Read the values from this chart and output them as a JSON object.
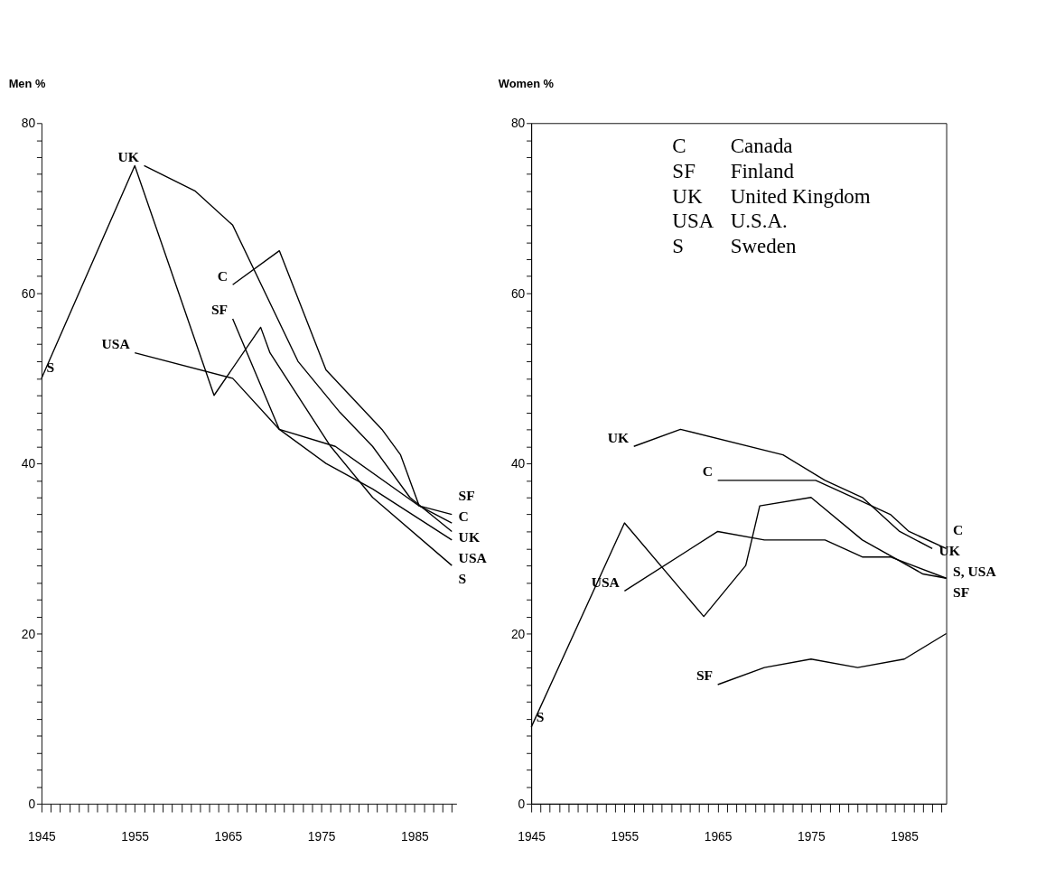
{
  "chart_data": [
    {
      "type": "line",
      "ylabel": "Men %",
      "xlim": [
        1945,
        1989.5
      ],
      "ylim": [
        0,
        80
      ],
      "xticks": [
        1945,
        {
          "value": 1946,
          "label": null
        },
        {
          "value": 1947,
          "label": null
        },
        {
          "value": 1948,
          "label": null
        },
        {
          "value": 1949,
          "label": null
        },
        {
          "value": 1950,
          "label": null
        },
        {
          "value": 1951,
          "label": null
        },
        {
          "value": 1952,
          "label": null
        },
        {
          "value": 1953,
          "label": null
        },
        {
          "value": 1954,
          "label": null
        },
        1955,
        {
          "value": 1956,
          "label": null
        },
        {
          "value": 1957,
          "label": null
        },
        {
          "value": 1958,
          "label": null
        },
        {
          "value": 1959,
          "label": null
        },
        {
          "value": 1960,
          "label": null
        },
        {
          "value": 1961,
          "label": null
        },
        {
          "value": 1962,
          "label": null
        },
        {
          "value": 1963,
          "label": null
        },
        {
          "value": 1964,
          "label": null
        },
        1965,
        {
          "value": 1966,
          "label": null
        },
        {
          "value": 1967,
          "label": null
        },
        {
          "value": 1968,
          "label": null
        },
        {
          "value": 1969,
          "label": null
        },
        {
          "value": 1970,
          "label": null
        },
        {
          "value": 1971,
          "label": null
        },
        {
          "value": 1972,
          "label": null
        },
        {
          "value": 1973,
          "label": null
        },
        {
          "value": 1974,
          "label": null
        },
        1975,
        {
          "value": 1976,
          "label": null
        },
        {
          "value": 1977,
          "label": null
        },
        {
          "value": 1978,
          "label": null
        },
        {
          "value": 1979,
          "label": null
        },
        {
          "value": 1980,
          "label": null
        },
        {
          "value": 1981,
          "label": null
        },
        {
          "value": 1982,
          "label": null
        },
        {
          "value": 1983,
          "label": null
        },
        {
          "value": 1984,
          "label": null
        },
        1985,
        {
          "value": 1986,
          "label": null
        },
        {
          "value": 1987,
          "label": null
        },
        {
          "value": 1988,
          "label": null
        },
        {
          "value": 1989,
          "label": null
        }
      ],
      "yticks": [
        0,
        {
          "value": 2,
          "label": null
        },
        {
          "value": 4,
          "label": null
        },
        {
          "value": 6,
          "label": null
        },
        {
          "value": 8,
          "label": null
        },
        {
          "value": 10,
          "label": null
        },
        {
          "value": 12,
          "label": null
        },
        {
          "value": 14,
          "label": null
        },
        {
          "value": 16,
          "label": null
        },
        {
          "value": 18,
          "label": null
        },
        20,
        {
          "value": 22,
          "label": null
        },
        {
          "value": 24,
          "label": null
        },
        {
          "value": 26,
          "label": null
        },
        {
          "value": 28,
          "label": null
        },
        {
          "value": 30,
          "label": null
        },
        {
          "value": 32,
          "label": null
        },
        {
          "value": 34,
          "label": null
        },
        {
          "value": 36,
          "label": null
        },
        {
          "value": 38,
          "label": null
        },
        40,
        {
          "value": 42,
          "label": null
        },
        {
          "value": 44,
          "label": null
        },
        {
          "value": 46,
          "label": null
        },
        {
          "value": 48,
          "label": null
        },
        {
          "value": 50,
          "label": null
        },
        {
          "value": 52,
          "label": null
        },
        {
          "value": 54,
          "label": null
        },
        {
          "value": 56,
          "label": null
        },
        {
          "value": 58,
          "label": null
        },
        60,
        {
          "value": 62,
          "label": null
        },
        {
          "value": 64,
          "label": null
        },
        {
          "value": 66,
          "label": null
        },
        {
          "value": 68,
          "label": null
        },
        {
          "value": 70,
          "label": null
        },
        {
          "value": 72,
          "label": null
        },
        {
          "value": 74,
          "label": null
        },
        {
          "value": 76,
          "label": null
        },
        {
          "value": 78,
          "label": null
        },
        80
      ],
      "series": [
        {
          "color": "#000000",
          "x": [
            1945,
            1955,
            1963.5,
            1968.5,
            1969.5,
            1976,
            1980.5,
            1989
          ],
          "values": [
            50,
            75,
            48,
            56,
            53,
            42,
            36,
            28
          ]
        },
        {
          "color": "#000000",
          "x": [
            1956,
            1961.5,
            1965.5,
            1972.5,
            1977,
            1980.5,
            1984.5,
            1989
          ],
          "values": [
            75,
            72,
            68,
            52,
            46,
            42,
            36,
            32
          ]
        },
        {
          "color": "#000000",
          "x": [
            1965.5,
            1970.5,
            1975.5,
            1981.5,
            1983.5,
            1985.5,
            1989
          ],
          "values": [
            61,
            65,
            51,
            44,
            41,
            35,
            33
          ]
        },
        {
          "color": "#000000",
          "x": [
            1965.5,
            1970.5,
            1975.5,
            1980.5,
            1989
          ],
          "values": [
            57,
            44,
            40,
            37,
            31
          ]
        },
        {
          "color": "#000000",
          "x": [
            1955,
            1965.5,
            1970.5,
            1976.5,
            1985.5,
            1989
          ],
          "values": [
            53,
            50,
            44,
            42,
            35,
            34
          ]
        }
      ],
      "annotations": [
        {
          "text": "S",
          "x": 1945,
          "y": 50
        },
        {
          "text": "UK",
          "x": 1956,
          "y": 75
        },
        {
          "text": "USA",
          "x": 1955,
          "y": 53
        },
        {
          "text": "C",
          "x": 1965.5,
          "y": 61
        },
        {
          "text": "SF",
          "x": 1965.5,
          "y": 57
        },
        {
          "text": "SF",
          "x": 1989,
          "y": 31
        },
        {
          "text": "C",
          "x": 1989,
          "y": 33
        },
        {
          "text": "UK",
          "x": 1989,
          "y": 32
        },
        {
          "text": "USA",
          "x": 1989,
          "y": 34
        },
        {
          "text": "S",
          "x": 1989,
          "y": 28
        }
      ]
    },
    {
      "type": "line",
      "ylabel": "Women %",
      "xlim": [
        1945,
        1989.5
      ],
      "ylim": [
        0,
        80
      ],
      "xticks": [
        1945,
        {
          "value": 1946,
          "label": null
        },
        {
          "value": 1947,
          "label": null
        },
        {
          "value": 1948,
          "label": null
        },
        {
          "value": 1949,
          "label": null
        },
        {
          "value": 1950,
          "label": null
        },
        {
          "value": 1951,
          "label": null
        },
        {
          "value": 1952,
          "label": null
        },
        {
          "value": 1953,
          "label": null
        },
        {
          "value": 1954,
          "label": null
        },
        1955,
        {
          "value": 1956,
          "label": null
        },
        {
          "value": 1957,
          "label": null
        },
        {
          "value": 1958,
          "label": null
        },
        {
          "value": 1959,
          "label": null
        },
        {
          "value": 1960,
          "label": null
        },
        {
          "value": 1961,
          "label": null
        },
        {
          "value": 1962,
          "label": null
        },
        {
          "value": 1963,
          "label": null
        },
        {
          "value": 1964,
          "label": null
        },
        1965,
        {
          "value": 1966,
          "label": null
        },
        {
          "value": 1967,
          "label": null
        },
        {
          "value": 1968,
          "label": null
        },
        {
          "value": 1969,
          "label": null
        },
        {
          "value": 1970,
          "label": null
        },
        {
          "value": 1971,
          "label": null
        },
        {
          "value": 1972,
          "label": null
        },
        {
          "value": 1973,
          "label": null
        },
        {
          "value": 1974,
          "label": null
        },
        1975,
        {
          "value": 1976,
          "label": null
        },
        {
          "value": 1977,
          "label": null
        },
        {
          "value": 1978,
          "label": null
        },
        {
          "value": 1979,
          "label": null
        },
        {
          "value": 1980,
          "label": null
        },
        {
          "value": 1981,
          "label": null
        },
        {
          "value": 1982,
          "label": null
        },
        {
          "value": 1983,
          "label": null
        },
        {
          "value": 1984,
          "label": null
        },
        1985,
        {
          "value": 1986,
          "label": null
        },
        {
          "value": 1987,
          "label": null
        },
        {
          "value": 1988,
          "label": null
        },
        {
          "value": 1989,
          "label": null
        }
      ],
      "yticks": [
        0,
        {
          "value": 2,
          "label": null
        },
        {
          "value": 4,
          "label": null
        },
        {
          "value": 6,
          "label": null
        },
        {
          "value": 8,
          "label": null
        },
        {
          "value": 10,
          "label": null
        },
        {
          "value": 12,
          "label": null
        },
        {
          "value": 14,
          "label": null
        },
        {
          "value": 16,
          "label": null
        },
        {
          "value": 18,
          "label": null
        },
        20,
        {
          "value": 22,
          "label": null
        },
        {
          "value": 24,
          "label": null
        },
        {
          "value": 26,
          "label": null
        },
        {
          "value": 28,
          "label": null
        },
        {
          "value": 30,
          "label": null
        },
        {
          "value": 32,
          "label": null
        },
        {
          "value": 34,
          "label": null
        },
        {
          "value": 36,
          "label": null
        },
        {
          "value": 38,
          "label": null
        },
        40,
        {
          "value": 42,
          "label": null
        },
        {
          "value": 44,
          "label": null
        },
        {
          "value": 46,
          "label": null
        },
        {
          "value": 48,
          "label": null
        },
        {
          "value": 50,
          "label": null
        },
        {
          "value": 52,
          "label": null
        },
        {
          "value": 54,
          "label": null
        },
        {
          "value": 56,
          "label": null
        },
        {
          "value": 58,
          "label": null
        },
        60,
        {
          "value": 62,
          "label": null
        },
        {
          "value": 64,
          "label": null
        },
        {
          "value": 66,
          "label": null
        },
        {
          "value": 68,
          "label": null
        },
        {
          "value": 70,
          "label": null
        },
        {
          "value": 72,
          "label": null
        },
        {
          "value": 74,
          "label": null
        },
        {
          "value": 76,
          "label": null
        },
        {
          "value": 78,
          "label": null
        },
        80
      ],
      "series": [
        {
          "color": "#000000",
          "x": [
            1945,
            1955,
            1963.5,
            1968,
            1969.5,
            1975,
            1980.5,
            1987,
            1989.5
          ],
          "values": [
            9,
            33,
            22,
            28,
            35,
            36,
            31,
            27,
            26.5
          ]
        },
        {
          "color": "#000000",
          "x": [
            1956,
            1961,
            1972,
            1976.5,
            1980.5,
            1984.5,
            1988
          ],
          "values": [
            42,
            44,
            41,
            38,
            36,
            32,
            30
          ]
        },
        {
          "color": "#000000",
          "x": [
            1965,
            1975.5,
            1980.5,
            1983.5,
            1985.5,
            1989.5
          ],
          "values": [
            38,
            38,
            35.5,
            34,
            32,
            30
          ]
        },
        {
          "color": "#000000",
          "x": [
            1955,
            1965,
            1970,
            1976.5,
            1980.5,
            1983.5,
            1989.5
          ],
          "values": [
            25,
            32,
            31,
            31,
            29,
            29,
            26.5
          ]
        },
        {
          "color": "#000000",
          "x": [
            1965,
            1970,
            1975,
            1980,
            1985,
            1989.5
          ],
          "values": [
            14,
            16,
            17,
            16,
            17,
            20
          ]
        }
      ],
      "annotations": [
        "C",
        "Canada",
        "SF",
        "Finland",
        "UK",
        "United Kingdom",
        "USA",
        "U.S.A.",
        "S",
        "Sweden",
        {
          "text": "UK",
          "x": 1956,
          "y": 42
        },
        {
          "text": "C",
          "x": 1965,
          "y": 38
        },
        {
          "text": "USA",
          "x": 1955,
          "y": 25
        },
        {
          "text": "S",
          "x": 1945,
          "y": 9
        },
        {
          "text": "SF",
          "x": 1965,
          "y": 14
        },
        {
          "text": "C",
          "x": 1989.5,
          "y": 30
        },
        {
          "text": "UK",
          "x": 1988,
          "y": 30
        },
        {
          "text": "S, USA",
          "x": 1989.5,
          "y": 26.5
        },
        {
          "text": "SF",
          "x": 1989.5,
          "y": 20
        }
      ]
    }
  ]
}
